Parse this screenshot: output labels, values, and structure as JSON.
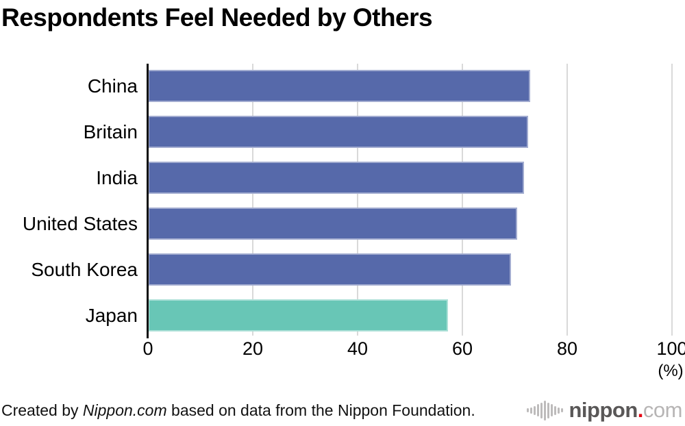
{
  "chart_data": {
    "type": "bar",
    "orientation": "horizontal",
    "title": "Respondents Feel Needed by Others",
    "categories": [
      "China",
      "Britain",
      "India",
      "United States",
      "South Korea",
      "Japan"
    ],
    "values": [
      73.0,
      72.6,
      71.8,
      70.5,
      69.3,
      57.2
    ],
    "unit": "%",
    "xlabel": "",
    "ylabel": "",
    "xlim": [
      0,
      100
    ],
    "x_ticks": [
      0,
      20,
      40,
      60,
      80,
      100
    ],
    "percent_label": "(%)",
    "grid": true,
    "legend": false,
    "bar_color": "#5669aa",
    "highlight_color": "#68c6b6",
    "highlight_category": "Japan",
    "gridline_color": "#d9d9d9",
    "axis_color": "#0d0d0d"
  },
  "footer": {
    "credit_prefix": "Created by ",
    "credit_source": "Nippon.com",
    "credit_suffix": " based on data from the Nippon Foundation.",
    "logo_name": "nippon",
    "logo_dot": ".",
    "logo_tld": "com"
  }
}
